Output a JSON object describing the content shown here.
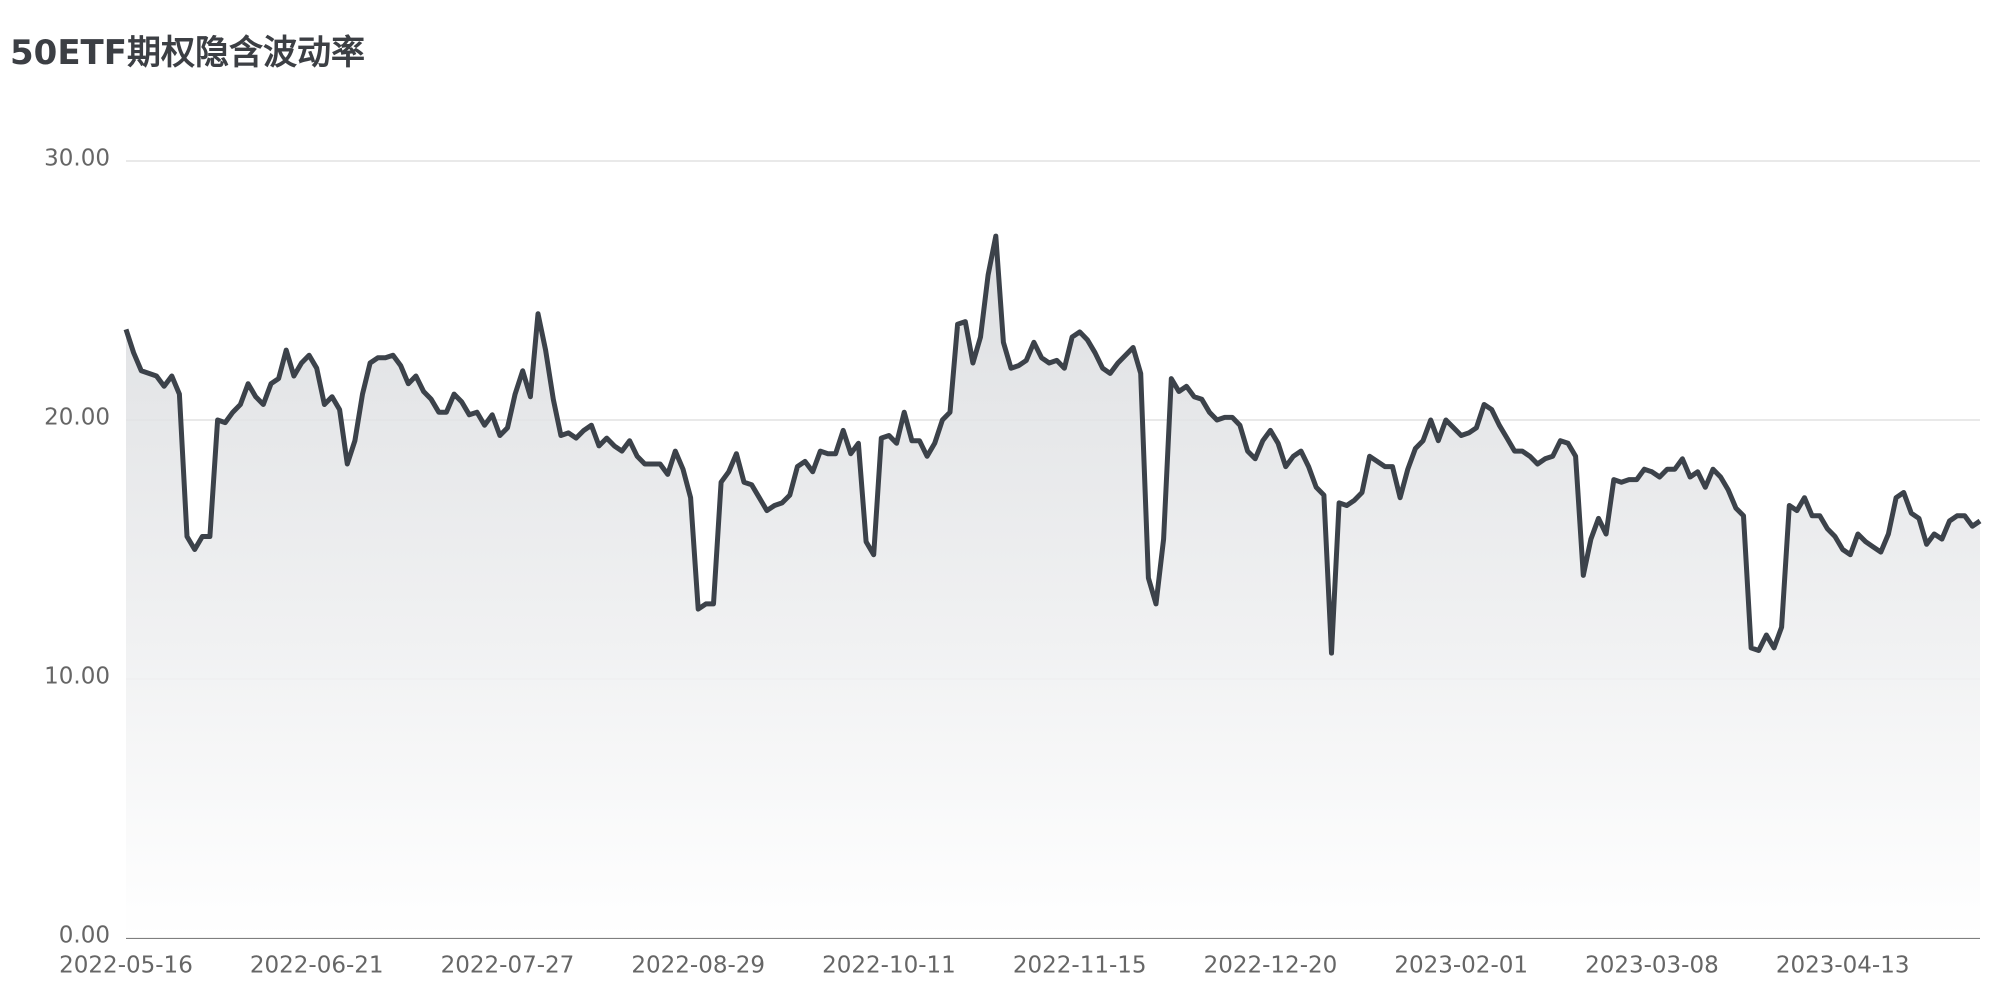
{
  "chart_data": {
    "type": "line",
    "title": "50ETF期权隐含波动率",
    "categories": [
      "2022-05-16",
      null,
      null,
      null,
      null,
      null,
      null,
      null,
      null,
      null,
      null,
      null,
      null,
      null,
      null,
      null,
      null,
      null,
      null,
      null,
      null,
      null,
      null,
      null,
      null,
      "2022-06-21",
      null,
      null,
      null,
      null,
      null,
      null,
      null,
      null,
      null,
      null,
      null,
      null,
      null,
      null,
      null,
      null,
      null,
      null,
      null,
      null,
      null,
      null,
      null,
      null,
      "2022-07-27",
      null,
      null,
      null,
      null,
      null,
      null,
      null,
      null,
      null,
      null,
      null,
      null,
      null,
      null,
      null,
      null,
      null,
      null,
      null,
      null,
      null,
      null,
      null,
      null,
      "2022-08-29",
      null,
      null,
      null,
      null,
      null,
      null,
      null,
      null,
      null,
      null,
      null,
      null,
      null,
      null,
      null,
      null,
      null,
      null,
      null,
      null,
      null,
      null,
      null,
      null,
      "2022-10-11",
      null,
      null,
      null,
      null,
      null,
      null,
      null,
      null,
      null,
      null,
      null,
      null,
      null,
      null,
      null,
      null,
      null,
      null,
      null,
      null,
      null,
      null,
      null,
      null,
      "2022-11-15",
      null,
      null,
      null,
      null,
      null,
      null,
      null,
      null,
      null,
      null,
      null,
      null,
      null,
      null,
      null,
      null,
      null,
      null,
      null,
      null,
      null,
      null,
      null,
      null,
      "2022-12-20",
      null,
      null,
      null,
      null,
      null,
      null,
      null,
      null,
      null,
      null,
      null,
      null,
      null,
      null,
      null,
      null,
      null,
      null,
      null,
      null,
      null,
      null,
      null,
      null,
      "2023-02-01",
      null,
      null,
      null,
      null,
      null,
      null,
      null,
      null,
      null,
      null,
      null,
      null,
      null,
      null,
      null,
      null,
      null,
      null,
      null,
      null,
      null,
      null,
      null,
      null,
      "2023-03-08",
      null,
      null,
      null,
      null,
      null,
      null,
      null,
      null,
      null,
      null,
      null,
      null,
      null,
      null,
      null,
      null,
      null,
      null,
      null,
      null,
      null,
      null,
      null,
      null,
      "2023-04-13",
      null,
      null,
      null,
      null,
      null,
      null,
      null,
      null,
      null,
      null,
      null,
      null,
      null,
      null,
      null,
      null,
      null,
      null
    ],
    "values": [
      23.5,
      22.6,
      21.9,
      21.8,
      21.7,
      21.3,
      21.7,
      21.0,
      15.5,
      15.0,
      15.5,
      15.5,
      20.0,
      19.9,
      20.3,
      20.6,
      21.4,
      20.9,
      20.6,
      21.4,
      21.6,
      22.7,
      21.7,
      22.2,
      22.5,
      22.0,
      20.6,
      20.9,
      20.4,
      18.3,
      19.2,
      21.0,
      22.2,
      22.4,
      22.4,
      22.5,
      22.1,
      21.4,
      21.7,
      21.1,
      20.8,
      20.3,
      20.3,
      21.0,
      20.7,
      20.2,
      20.3,
      19.8,
      20.2,
      19.4,
      19.7,
      21.0,
      21.9,
      20.9,
      24.1,
      22.7,
      20.8,
      19.4,
      19.5,
      19.3,
      19.6,
      19.8,
      19.0,
      19.3,
      19.0,
      18.8,
      19.2,
      18.6,
      18.3,
      18.3,
      18.3,
      17.9,
      18.8,
      18.1,
      17.0,
      12.7,
      12.9,
      12.9,
      17.6,
      18.0,
      18.7,
      17.6,
      17.5,
      17.0,
      16.5,
      16.7,
      16.8,
      17.1,
      18.2,
      18.4,
      18.0,
      18.8,
      18.7,
      18.7,
      19.6,
      18.7,
      19.1,
      15.3,
      14.8,
      19.3,
      19.4,
      19.1,
      20.3,
      19.2,
      19.2,
      18.6,
      19.1,
      20.0,
      20.3,
      23.7,
      23.8,
      22.2,
      23.2,
      25.6,
      27.1,
      23.0,
      22.0,
      22.1,
      22.3,
      23.0,
      22.4,
      22.2,
      22.3,
      22.0,
      23.2,
      23.4,
      23.1,
      22.6,
      22.0,
      21.8,
      22.2,
      22.5,
      22.8,
      21.8,
      13.9,
      12.9,
      15.4,
      21.6,
      21.1,
      21.3,
      20.9,
      20.8,
      20.3,
      20.0,
      20.1,
      20.1,
      19.8,
      18.8,
      18.5,
      19.2,
      19.6,
      19.1,
      18.2,
      18.6,
      18.8,
      18.2,
      17.4,
      17.1,
      11.0,
      16.8,
      16.7,
      16.9,
      17.2,
      18.6,
      18.4,
      18.2,
      18.2,
      17.0,
      18.1,
      18.9,
      19.2,
      20.0,
      19.2,
      20.0,
      19.7,
      19.4,
      19.5,
      19.7,
      20.6,
      20.4,
      19.8,
      19.3,
      18.8,
      18.8,
      18.6,
      18.3,
      18.5,
      18.6,
      19.2,
      19.1,
      18.6,
      14.0,
      15.4,
      16.2,
      15.6,
      17.7,
      17.6,
      17.7,
      17.7,
      18.1,
      18.0,
      17.8,
      18.1,
      18.1,
      18.5,
      17.8,
      18.0,
      17.4,
      18.1,
      17.8,
      17.3,
      16.6,
      16.3,
      11.2,
      11.1,
      11.7,
      11.2,
      12.0,
      16.7,
      16.5,
      17.0,
      16.3,
      16.3,
      15.8,
      15.5,
      15.0,
      14.8,
      15.6,
      15.3,
      15.1,
      14.9,
      15.6,
      17.0,
      17.2,
      16.4,
      16.2,
      15.2,
      15.6,
      15.4,
      16.1,
      16.3,
      16.3,
      15.9,
      16.1
    ],
    "color": "#3c424a",
    "ylim": [
      0,
      30
    ],
    "yticks": [
      {
        "value": 0,
        "label": "0.00"
      },
      {
        "value": 10,
        "label": "10.00"
      },
      {
        "value": 20,
        "label": "20.00"
      },
      {
        "value": 30,
        "label": "30.00"
      }
    ],
    "grid": true
  }
}
